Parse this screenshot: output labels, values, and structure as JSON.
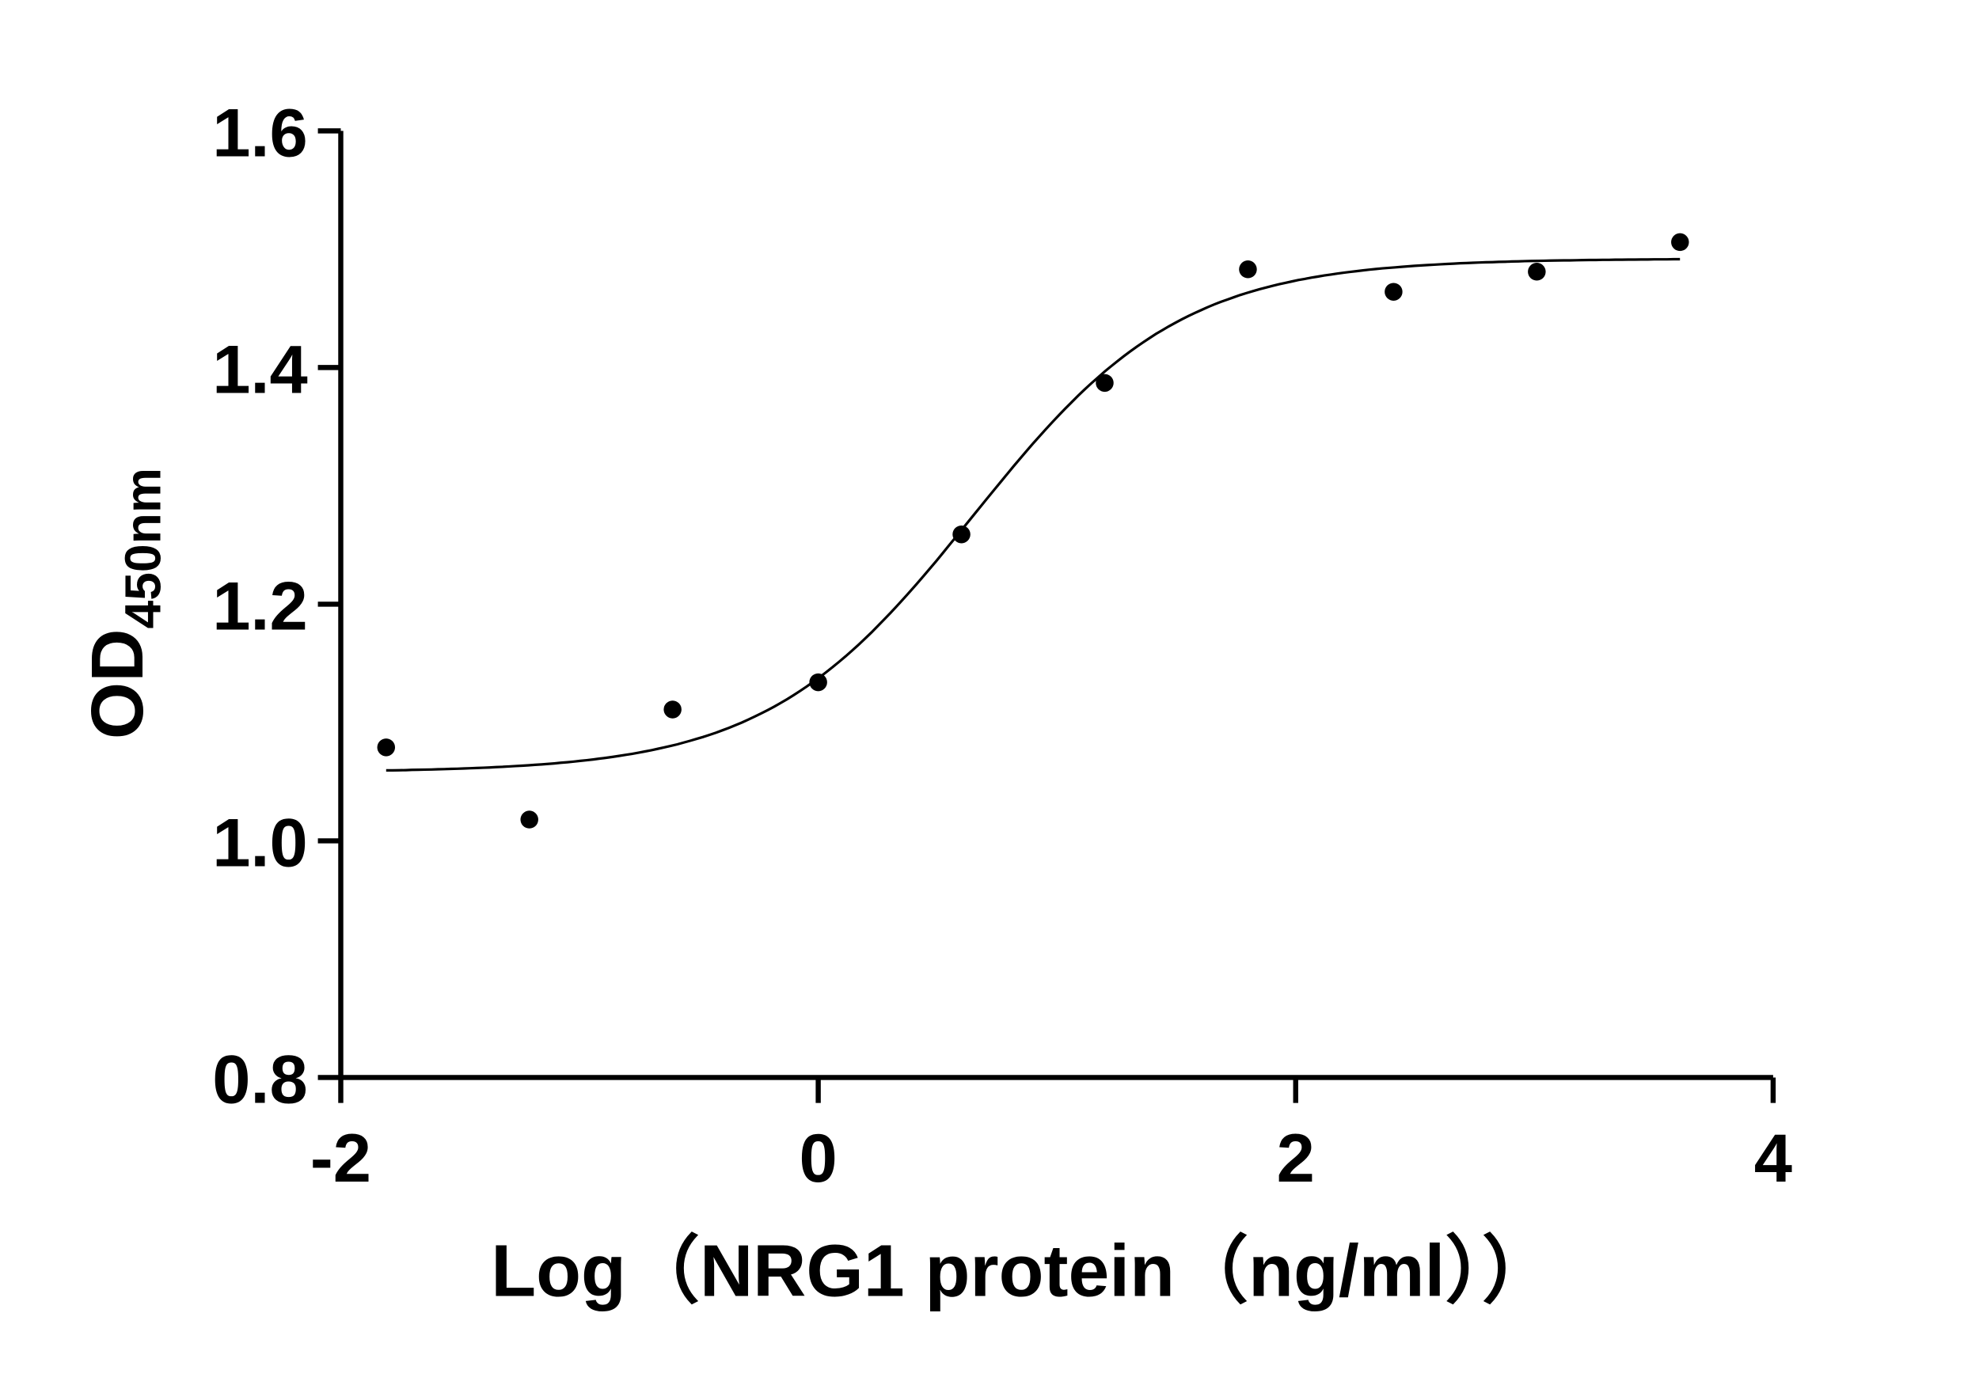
{
  "chart_data": {
    "type": "scatter",
    "title": "",
    "xlabel": "Log（NRG1 protein（ng/ml））",
    "ylabel_main": "OD",
    "ylabel_sub": "450nm",
    "xlim": [
      -2,
      4
    ],
    "ylim": [
      0.8,
      1.6
    ],
    "xticks": [
      -2,
      0,
      2,
      4
    ],
    "xtick_labels": [
      "-2",
      "0",
      "2",
      "4"
    ],
    "yticks": [
      0.8,
      1.0,
      1.2,
      1.4,
      1.6
    ],
    "ytick_labels": [
      "0.8",
      "1.0",
      "1.2",
      "1.4",
      "1.6"
    ],
    "grid": false,
    "points": {
      "x": [
        -1.81,
        -1.21,
        -0.61,
        0.0,
        0.6,
        1.2,
        1.8,
        2.41,
        3.01,
        3.61
      ],
      "y": [
        1.079,
        1.018,
        1.111,
        1.134,
        1.259,
        1.387,
        1.483,
        1.464,
        1.481,
        1.506
      ]
    },
    "fit_curve": {
      "model": "4PL sigmoid",
      "bottom": 1.058,
      "top": 1.492,
      "log_ec50": 0.65,
      "hill_slope": 1.0,
      "x_range": [
        -1.81,
        3.61
      ]
    },
    "colors": {
      "points": "#000000",
      "curve": "#000000",
      "axes": "#000000"
    }
  }
}
